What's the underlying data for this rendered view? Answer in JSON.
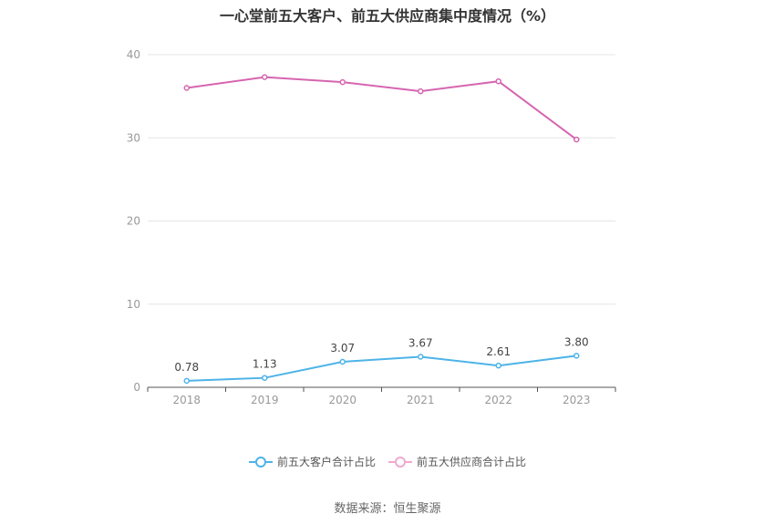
{
  "chart_data": {
    "type": "line",
    "title": "一心堂前五大客户、前五大供应商集中度情况（%）",
    "categories": [
      "2018",
      "2019",
      "2020",
      "2021",
      "2022",
      "2023"
    ],
    "ylim": [
      0,
      40
    ],
    "yticks": [
      "0",
      "10",
      "20",
      "30",
      "40"
    ],
    "grid": true,
    "legend_position": "bottom",
    "series": [
      {
        "name": "前五大客户合计占比",
        "color": "#4db3e8",
        "values": [
          0.78,
          1.13,
          3.07,
          3.67,
          2.61,
          3.8
        ],
        "labels": [
          "0.78",
          "1.13",
          "3.07",
          "3.67",
          "2.61",
          "3.80"
        ]
      },
      {
        "name": "前五大供应商合计占比",
        "color": "#d665b0",
        "values": [
          36.0,
          37.3,
          36.7,
          35.6,
          36.8,
          29.8
        ]
      }
    ]
  },
  "legend": {
    "items": [
      "前五大客户合计占比",
      "前五大供应商合计占比"
    ],
    "colors": [
      "#4db3e8",
      "#f0a8cf"
    ]
  },
  "source": "数据来源：恒生聚源"
}
